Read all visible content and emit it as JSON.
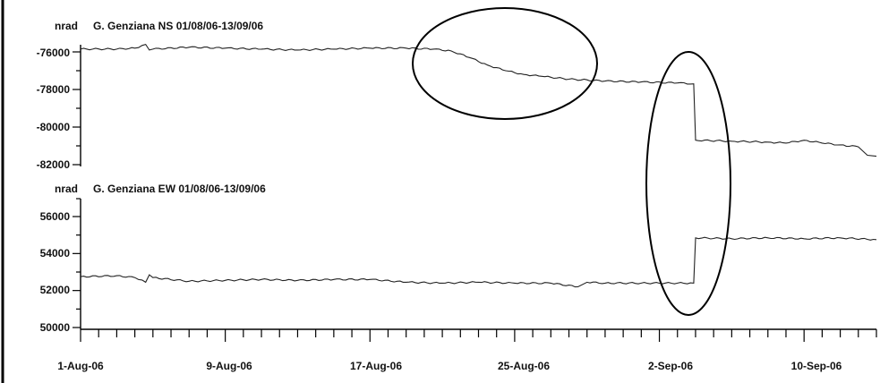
{
  "chart_data": [
    {
      "type": "line",
      "title": "G. Genziana NS 01/08/06-13/09/06",
      "ylabel": "nrad",
      "ylim": [
        -82000,
        -75000
      ],
      "yticks": [
        -76000,
        -78000,
        -80000,
        -82000
      ],
      "xlim_days": [
        0,
        44
      ],
      "series": [
        {
          "x": [
            0,
            2,
            3,
            3.6,
            3.8,
            4,
            6,
            8,
            10,
            12,
            14,
            16,
            18,
            19.5,
            20.5,
            21.5,
            22.5,
            23.5,
            24.5,
            25.5,
            27,
            29,
            31,
            33,
            33.9,
            34,
            36,
            38,
            39,
            40,
            41,
            42,
            43,
            43.5,
            44
          ],
          "values": [
            -75850,
            -75850,
            -75800,
            -75600,
            -75900,
            -75850,
            -75750,
            -75800,
            -75850,
            -75900,
            -75850,
            -75800,
            -75800,
            -75850,
            -75950,
            -76300,
            -76700,
            -77000,
            -77200,
            -77300,
            -77450,
            -77550,
            -77600,
            -77650,
            -77700,
            -80700,
            -80750,
            -80800,
            -80850,
            -80700,
            -80850,
            -80950,
            -81050,
            -81500,
            -81550
          ]
        }
      ]
    },
    {
      "type": "line",
      "title": "G. Genziana EW 01/08/06-13/09/06",
      "ylabel": "nrad",
      "ylim": [
        50000,
        57000
      ],
      "yticks": [
        56000,
        54000,
        52000,
        50000
      ],
      "xlim_days": [
        0,
        44
      ],
      "series": [
        {
          "x": [
            0,
            2,
            3,
            3.6,
            3.8,
            4,
            6,
            8,
            10,
            12,
            14,
            16,
            18,
            20,
            22,
            24,
            26,
            27.5,
            28,
            29,
            31,
            33,
            33.9,
            34,
            36,
            38,
            40,
            42,
            44
          ],
          "values": [
            52750,
            52800,
            52700,
            52450,
            52850,
            52700,
            52500,
            52550,
            52600,
            52550,
            52600,
            52600,
            52450,
            52400,
            52450,
            52400,
            52400,
            52200,
            52450,
            52400,
            52400,
            52400,
            52400,
            54850,
            54800,
            54850,
            54800,
            54850,
            54750
          ]
        }
      ]
    }
  ],
  "x_axis": {
    "tick_labels": [
      "1-Aug-06",
      "9-Aug-06",
      "17-Aug-06",
      "25-Aug-06",
      "2-Sep-06",
      "10-Sep-06"
    ],
    "tick_days": [
      0,
      8,
      16,
      24,
      32,
      40
    ]
  },
  "annotations": [
    {
      "type": "ellipse",
      "label": ""
    },
    {
      "type": "ellipse",
      "label": ""
    }
  ]
}
